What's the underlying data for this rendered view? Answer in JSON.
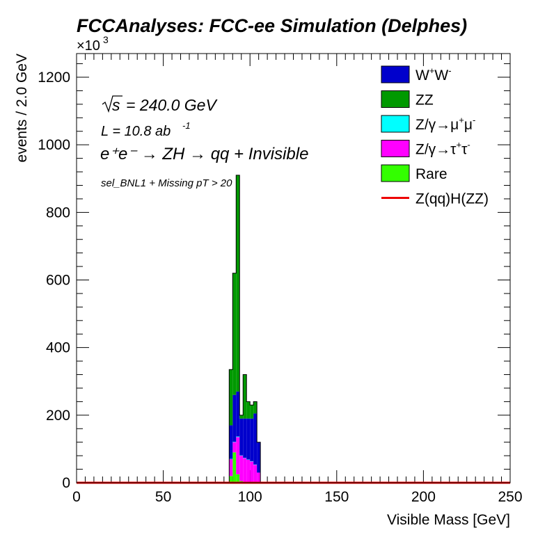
{
  "chart_data": {
    "type": "bar",
    "title": "FCCAnalyses: FCC-ee Simulation (Delphes)",
    "xlabel": "Visible Mass [GeV]",
    "ylabel": "events / 2.0 GeV",
    "y_multiplier": "×10³",
    "xlim": [
      0,
      250
    ],
    "ylim": [
      0,
      1270
    ],
    "x_ticks": [
      0,
      50,
      100,
      150,
      200,
      250
    ],
    "y_ticks": [
      0,
      200,
      400,
      600,
      800,
      1000,
      1200
    ],
    "stacked": true,
    "bin_edges": [
      88,
      90,
      92,
      94,
      96,
      98,
      100,
      102,
      104,
      106
    ],
    "annotations": {
      "sqrt_s": "= 240.0 GeV",
      "lumi_prefix": "L = 10.8 ab",
      "lumi_exp": "-1",
      "process": "e⁺e⁻ → ZH → qq + Invisible",
      "selection": "sel_BNL1 + Missing pT > 20"
    },
    "legend_position": "top-right",
    "series": [
      {
        "name": "Rare",
        "color": "#33ff00",
        "values": [
          20,
          90,
          25,
          5,
          3,
          3,
          3,
          3,
          0
        ]
      },
      {
        "name": "Z/γ→τ⁺τ⁻",
        "color": "#ff00ff",
        "values": [
          50,
          30,
          110,
          75,
          70,
          65,
          60,
          50,
          30
        ]
      },
      {
        "name": "Z/γ→μ⁺μ⁻",
        "color": "#00ffff",
        "values": [
          1,
          1,
          2,
          1,
          1,
          1,
          1,
          1,
          0
        ]
      },
      {
        "name": "W⁺W⁻",
        "color": "#0000cc",
        "values": [
          99,
          139,
          133,
          109,
          116,
          121,
          126,
          151,
          90
        ]
      },
      {
        "name": "ZZ",
        "color": "#009900",
        "values": [
          165,
          360,
          640,
          10,
          130,
          50,
          40,
          35,
          0
        ]
      }
    ],
    "overlay": {
      "name": "Z(qq)H(ZZ)",
      "color": "#ee0000",
      "value": 0
    }
  }
}
